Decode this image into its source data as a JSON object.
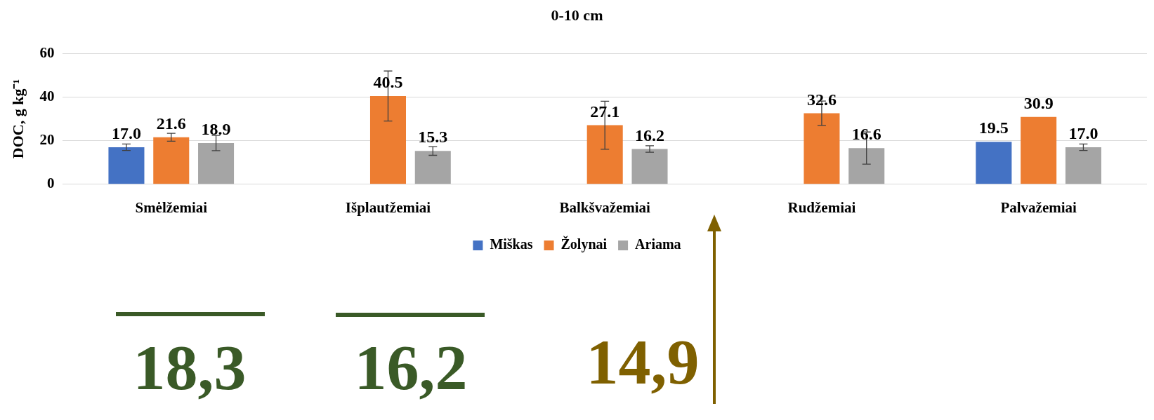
{
  "chart_data": {
    "type": "bar",
    "title": "0-10 cm",
    "ylabel": "DOC, g kg⁻¹",
    "categories": [
      "Smėlžemiai",
      "Išplautžemiai",
      "Balkšvažemiai",
      "Rudžemiai",
      "Palvažemiai"
    ],
    "series": [
      {
        "name": "Miškas",
        "color": "#4472c4",
        "values": [
          17.0,
          null,
          null,
          null,
          19.5
        ],
        "errors": [
          1.5,
          null,
          null,
          null,
          null
        ],
        "value_labels": [
          "17.0",
          null,
          null,
          null,
          "19.5"
        ]
      },
      {
        "name": "Žolynai",
        "color": "#ed7d31",
        "values": [
          21.6,
          40.5,
          27.1,
          32.6,
          30.9
        ],
        "errors": [
          1.8,
          11.5,
          11,
          5.6,
          null
        ],
        "value_labels": [
          "21.6",
          "40.5",
          "27.1",
          "32.6",
          "30.9"
        ]
      },
      {
        "name": "Ariama",
        "color": "#a5a5a5",
        "values": [
          18.9,
          15.3,
          16.2,
          16.6,
          17.0
        ],
        "errors": [
          3.5,
          2,
          1.5,
          7.4,
          1.5
        ],
        "value_labels": [
          "18.9",
          "15.3",
          "16.2",
          "16.6",
          "17.0"
        ]
      }
    ],
    "ylim": [
      0,
      60
    ],
    "yticks": [
      0,
      20,
      40,
      60
    ],
    "grid": "y",
    "legend": "bottom",
    "annotations": [
      "18,3",
      "16,2",
      "14,9"
    ]
  }
}
